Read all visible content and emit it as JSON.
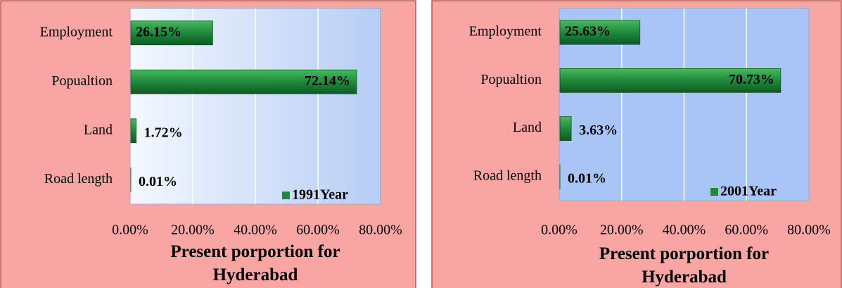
{
  "chart_data": [
    {
      "type": "bar",
      "orientation": "horizontal",
      "title": "Present porportion for Hyderabad",
      "categories": [
        "Employment",
        "Popualtion",
        "Land",
        "Road length"
      ],
      "series": [
        {
          "name": "1991Year",
          "color": "#1f8a3c",
          "values": [
            26.15,
            72.14,
            1.72,
            0.01
          ],
          "value_labels": [
            "26.15%",
            "72.14%",
            "1.72%",
            "0.01%"
          ]
        }
      ],
      "xlim": [
        0,
        80
      ],
      "xticks": [
        {
          "value": 0,
          "label": "0.00%"
        },
        {
          "value": 20,
          "label": "20.00%"
        },
        {
          "value": 40,
          "label": "40.00%"
        },
        {
          "value": 60,
          "label": "60.00%"
        },
        {
          "value": 80,
          "label": "80.00%"
        }
      ],
      "grid": true,
      "legend": "lower right"
    },
    {
      "type": "bar",
      "orientation": "horizontal",
      "title": "Present porportion for Hyderabad",
      "categories": [
        "Employment",
        "Popualtion",
        "Land",
        "Road length"
      ],
      "series": [
        {
          "name": "2001Year",
          "color": "#1f8a3c",
          "values": [
            25.63,
            70.73,
            3.63,
            0.01
          ],
          "value_labels": [
            "25.63%",
            "70.73%",
            "3.63%",
            "0.01%"
          ]
        }
      ],
      "xlim": [
        0,
        80
      ],
      "xticks": [
        {
          "value": 0,
          "label": "0.00%"
        },
        {
          "value": 20,
          "label": "20.00%"
        },
        {
          "value": 40,
          "label": "40.00%"
        },
        {
          "value": 60,
          "label": "60.00%"
        },
        {
          "value": 80,
          "label": "80.00%"
        }
      ],
      "grid": true,
      "legend": "lower right"
    }
  ]
}
